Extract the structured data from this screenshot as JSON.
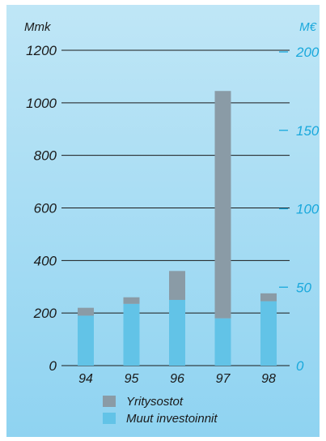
{
  "chart_data": {
    "type": "bar",
    "stacked": true,
    "categories": [
      "94",
      "95",
      "96",
      "97",
      "98"
    ],
    "series": [
      {
        "name": "Muut investoinnit",
        "values": [
          190,
          235,
          250,
          180,
          245
        ],
        "color": "#62c3e7"
      },
      {
        "name": "Yritysostot",
        "values": [
          30,
          25,
          110,
          865,
          30
        ],
        "color": "#8a9ba6"
      }
    ],
    "y_left": {
      "unit": "Mmk",
      "ticks": [
        "0",
        "200",
        "400",
        "600",
        "800",
        "1000",
        "1200"
      ],
      "range": [
        0,
        1200
      ]
    },
    "y_right": {
      "unit": "M€",
      "ticks": [
        "0",
        "50",
        "100",
        "150",
        "200"
      ],
      "range": [
        0,
        200
      ]
    },
    "grid": true,
    "legend_position": "bottom-left"
  }
}
